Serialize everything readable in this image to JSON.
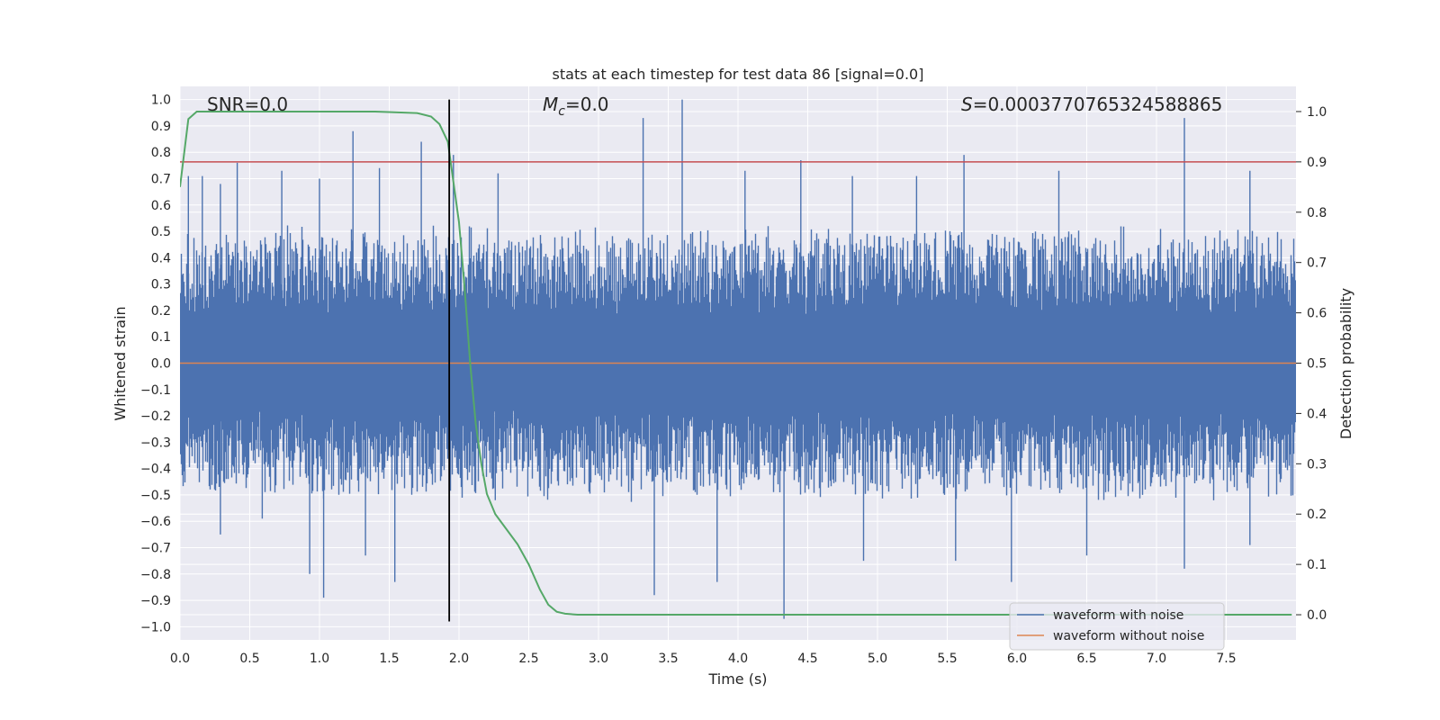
{
  "chart_data": {
    "type": "line",
    "title": "stats at each timestep for test data 86 [signal=0.0]",
    "xlabel": "Time (s)",
    "ylabel": "Whitened strain",
    "y2label": "Detection probability",
    "xlim": [
      0.0,
      8.0
    ],
    "ylim": [
      -1.05,
      1.05
    ],
    "y2lim": [
      -0.05,
      1.05
    ],
    "xticks": [
      "0.0",
      "0.5",
      "1.0",
      "1.5",
      "2.0",
      "2.5",
      "3.0",
      "3.5",
      "4.0",
      "4.5",
      "5.0",
      "5.5",
      "6.0",
      "6.5",
      "7.0",
      "7.5"
    ],
    "yticks": [
      "1.0",
      "0.9",
      "0.8",
      "0.7",
      "0.6",
      "0.5",
      "0.4",
      "0.3",
      "0.2",
      "0.1",
      "0.0",
      "−0.1",
      "−0.2",
      "−0.3",
      "−0.4",
      "−0.5",
      "−0.6",
      "−0.7",
      "−0.8",
      "−0.9",
      "−1.0"
    ],
    "y2ticks": [
      "1.0",
      "0.9",
      "0.8",
      "0.7",
      "0.6",
      "0.5",
      "0.4",
      "0.3",
      "0.2",
      "0.1",
      "0.0"
    ],
    "grid": true,
    "legend": {
      "placement": "lower-right",
      "entries": [
        "waveform with noise",
        "waveform without noise"
      ]
    },
    "annotations": {
      "snr": "SNR=0.0",
      "mc_symbol": "M",
      "mc_sub": "c",
      "mc_value": "=0.0",
      "s_symbol": "S",
      "s_value": "=0.00037707653245888​65"
    },
    "colors": {
      "noise": "#4c72b0",
      "clean": "#dd8452",
      "prob": "#55a868",
      "threshold": "#c44e52",
      "marker": "#000000",
      "bg": "#eaeaf2",
      "grid": "#ffffff"
    },
    "series": [
      {
        "name": "waveform with noise",
        "axis": "left",
        "envelope": {
          "typical_upper": 0.45,
          "typical_lower": -0.45,
          "spikes": [
            {
              "x": 0.06,
              "y": 0.71
            },
            {
              "x": 0.16,
              "y": 0.71
            },
            {
              "x": 0.29,
              "y": 0.68
            },
            {
              "x": 0.41,
              "y": 0.76
            },
            {
              "x": 0.73,
              "y": 0.73
            },
            {
              "x": 1.0,
              "y": 0.7
            },
            {
              "x": 1.24,
              "y": 0.88
            },
            {
              "x": 1.43,
              "y": 0.74
            },
            {
              "x": 1.73,
              "y": 0.84
            },
            {
              "x": 1.96,
              "y": 0.79
            },
            {
              "x": 2.28,
              "y": 0.72
            },
            {
              "x": 3.32,
              "y": 0.93
            },
            {
              "x": 3.6,
              "y": 1.0
            },
            {
              "x": 4.05,
              "y": 0.73
            },
            {
              "x": 4.45,
              "y": 0.77
            },
            {
              "x": 4.82,
              "y": 0.71
            },
            {
              "x": 5.28,
              "y": 0.71
            },
            {
              "x": 5.62,
              "y": 0.79
            },
            {
              "x": 6.3,
              "y": 0.73
            },
            {
              "x": 7.2,
              "y": 0.93
            },
            {
              "x": 7.67,
              "y": 0.73
            },
            {
              "x": 0.29,
              "y": -0.65
            },
            {
              "x": 0.59,
              "y": -0.59
            },
            {
              "x": 0.93,
              "y": -0.8
            },
            {
              "x": 1.03,
              "y": -0.89
            },
            {
              "x": 1.33,
              "y": -0.73
            },
            {
              "x": 1.54,
              "y": -0.83
            },
            {
              "x": 2.26,
              "y": -0.52
            },
            {
              "x": 3.4,
              "y": -0.88
            },
            {
              "x": 3.85,
              "y": -0.83
            },
            {
              "x": 4.33,
              "y": -0.97
            },
            {
              "x": 4.9,
              "y": -0.75
            },
            {
              "x": 5.56,
              "y": -0.75
            },
            {
              "x": 5.96,
              "y": -0.83
            },
            {
              "x": 6.5,
              "y": -0.73
            },
            {
              "x": 7.2,
              "y": -0.78
            },
            {
              "x": 7.67,
              "y": -0.69
            }
          ]
        }
      },
      {
        "name": "waveform without noise",
        "axis": "left",
        "x": [
          0.0,
          8.0
        ],
        "y": [
          0.0,
          0.0
        ]
      },
      {
        "name": "detection probability",
        "axis": "right",
        "x": [
          0.0,
          0.06,
          0.12,
          0.3,
          0.6,
          1.0,
          1.4,
          1.7,
          1.8,
          1.86,
          1.92,
          1.96,
          2.0,
          2.04,
          2.08,
          2.12,
          2.16,
          2.2,
          2.26,
          2.34,
          2.42,
          2.5,
          2.58,
          2.64,
          2.7,
          2.76,
          2.85,
          3.0,
          4.0,
          5.0,
          6.0,
          7.0,
          7.97
        ],
        "y": [
          0.85,
          0.985,
          1.0,
          1.0,
          1.0,
          1.0,
          1.0,
          0.997,
          0.99,
          0.975,
          0.94,
          0.86,
          0.78,
          0.65,
          0.5,
          0.38,
          0.3,
          0.24,
          0.2,
          0.17,
          0.14,
          0.1,
          0.05,
          0.02,
          0.006,
          0.002,
          0.0,
          0.0,
          0.0,
          0.0,
          0.0,
          0.0,
          0.0
        ]
      },
      {
        "name": "threshold",
        "axis": "right",
        "x": [
          0.0,
          8.0
        ],
        "y": [
          0.9,
          0.9
        ]
      },
      {
        "name": "detection time",
        "axis": "left",
        "x": [
          1.93,
          1.93
        ],
        "y": [
          -0.98,
          1.0
        ]
      }
    ]
  }
}
